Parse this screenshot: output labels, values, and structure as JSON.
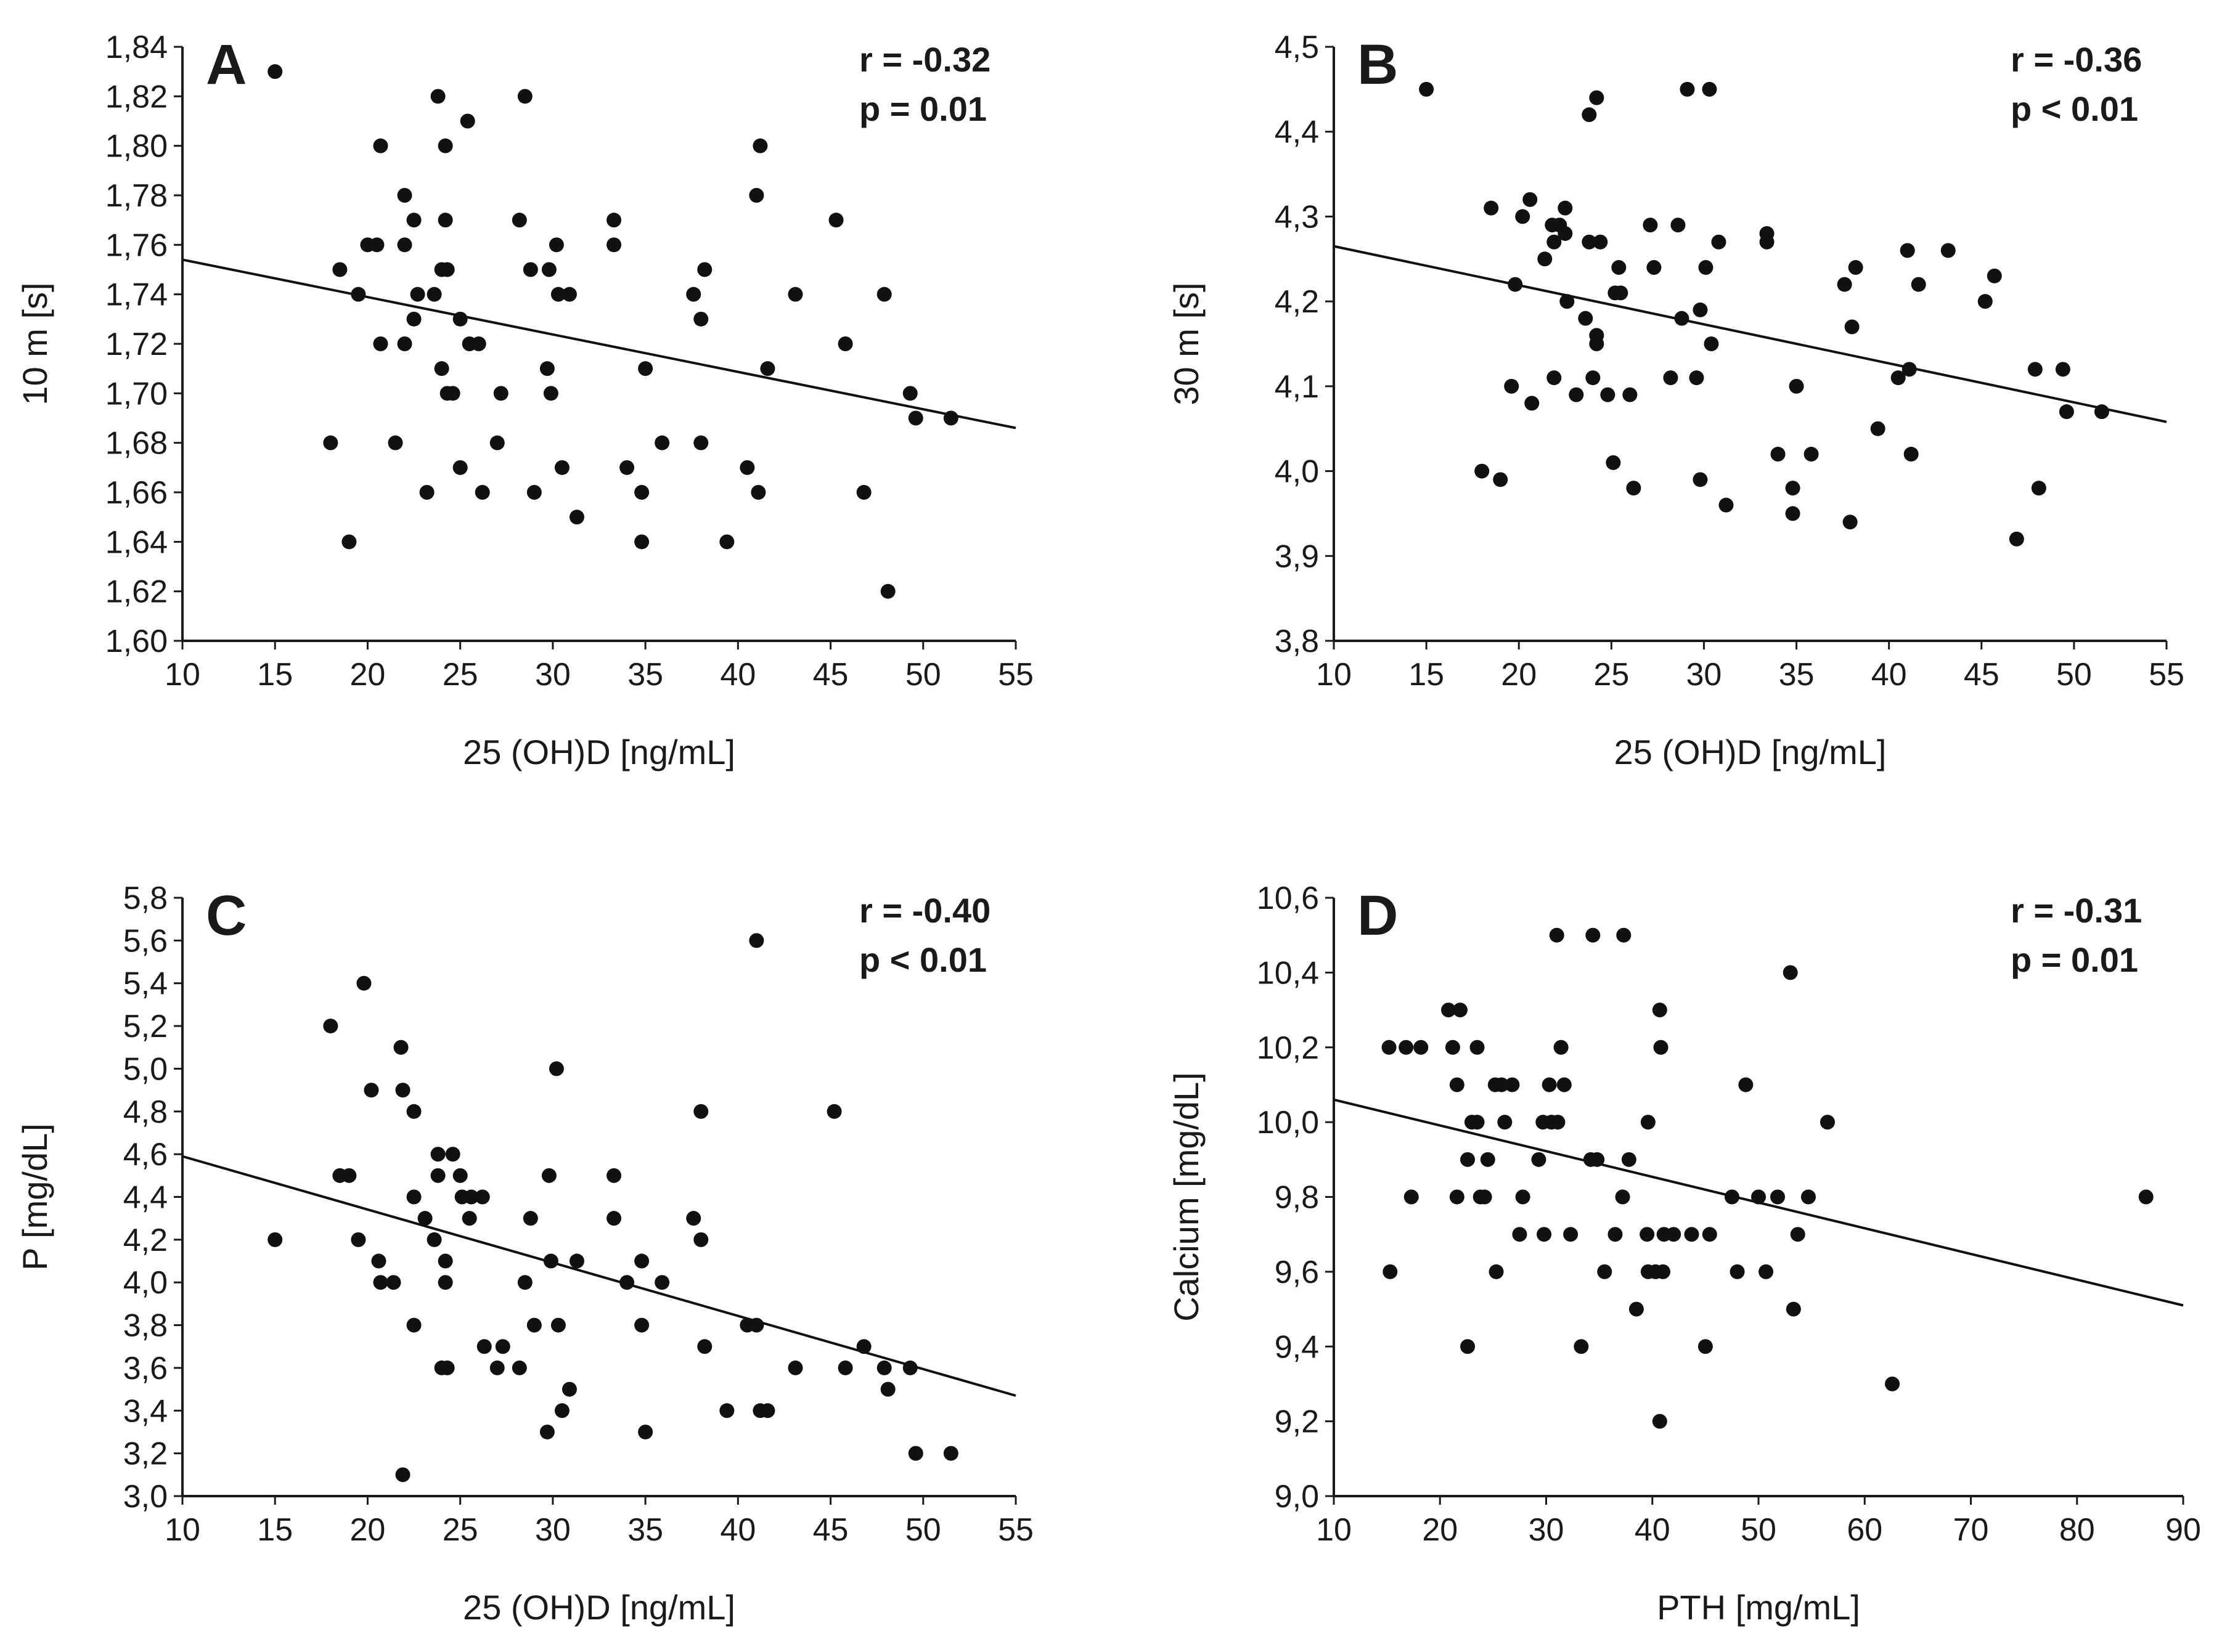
{
  "figure": {
    "colors": {
      "point": "#111111",
      "line": "#111111",
      "axis": "#1a1a1a",
      "background": "#ffffff"
    }
  },
  "chart_data": [
    {
      "type": "scatter",
      "panel": "A",
      "xlabel": "25 (OH)D [ng/mL]",
      "ylabel": "10 m [s]",
      "xlim": [
        10,
        55
      ],
      "ylim": [
        1.6,
        1.84
      ],
      "xticks": [
        10,
        15,
        20,
        25,
        30,
        35,
        40,
        45,
        50,
        55
      ],
      "xtick_labels": [
        "10",
        "15",
        "20",
        "25",
        "30",
        "35",
        "40",
        "45",
        "50",
        "55"
      ],
      "yticks": [
        1.6,
        1.62,
        1.64,
        1.66,
        1.68,
        1.7,
        1.72,
        1.74,
        1.76,
        1.78,
        1.8,
        1.82,
        1.84
      ],
      "ytick_labels": [
        "1,60",
        "1,62",
        "1,64",
        "1,66",
        "1,68",
        "1,70",
        "1,72",
        "1,74",
        "1,76",
        "1,78",
        "1,80",
        "1,82",
        "1,84"
      ],
      "stats": {
        "r": "r = -0.32",
        "p": "p = 0.01"
      },
      "trendline": {
        "x": [
          10,
          55
        ],
        "y": [
          1.754,
          1.686
        ]
      },
      "points": [
        [
          15,
          1.83
        ],
        [
          18,
          1.68
        ],
        [
          18.5,
          1.75
        ],
        [
          19,
          1.64
        ],
        [
          19.5,
          1.74
        ],
        [
          20,
          1.76
        ],
        [
          20.5,
          1.76
        ],
        [
          20.7,
          1.8
        ],
        [
          20.7,
          1.72
        ],
        [
          21.5,
          1.68
        ],
        [
          22,
          1.78
        ],
        [
          22,
          1.76
        ],
        [
          22,
          1.72
        ],
        [
          22.5,
          1.77
        ],
        [
          22.5,
          1.73
        ],
        [
          22.7,
          1.74
        ],
        [
          23.2,
          1.66
        ],
        [
          23.6,
          1.74
        ],
        [
          23.8,
          1.82
        ],
        [
          24,
          1.75
        ],
        [
          24,
          1.71
        ],
        [
          24.2,
          1.8
        ],
        [
          24.2,
          1.77
        ],
        [
          24.3,
          1.75
        ],
        [
          24.3,
          1.7
        ],
        [
          24.6,
          1.7
        ],
        [
          25,
          1.73
        ],
        [
          25,
          1.67
        ],
        [
          25.4,
          1.81
        ],
        [
          25.5,
          1.72
        ],
        [
          26,
          1.72
        ],
        [
          26.2,
          1.66
        ],
        [
          27,
          1.68
        ],
        [
          27.2,
          1.7
        ],
        [
          28.2,
          1.77
        ],
        [
          28.5,
          1.82
        ],
        [
          28.8,
          1.75
        ],
        [
          29,
          1.66
        ],
        [
          29.7,
          1.71
        ],
        [
          29.8,
          1.75
        ],
        [
          29.9,
          1.7
        ],
        [
          30.2,
          1.76
        ],
        [
          30.3,
          1.74
        ],
        [
          30.5,
          1.67
        ],
        [
          30.9,
          1.74
        ],
        [
          31.3,
          1.65
        ],
        [
          33.3,
          1.77
        ],
        [
          33.3,
          1.76
        ],
        [
          34,
          1.67
        ],
        [
          34.8,
          1.66
        ],
        [
          34.8,
          1.64
        ],
        [
          35,
          1.71
        ],
        [
          35.9,
          1.68
        ],
        [
          37.6,
          1.74
        ],
        [
          38,
          1.73
        ],
        [
          38,
          1.68
        ],
        [
          38.2,
          1.75
        ],
        [
          39.4,
          1.64
        ],
        [
          40.5,
          1.67
        ],
        [
          41,
          1.78
        ],
        [
          41.1,
          1.66
        ],
        [
          41.2,
          1.8
        ],
        [
          41.6,
          1.71
        ],
        [
          43.1,
          1.74
        ],
        [
          45.3,
          1.77
        ],
        [
          45.8,
          1.72
        ],
        [
          46.8,
          1.66
        ],
        [
          47.9,
          1.74
        ],
        [
          48.1,
          1.62
        ],
        [
          49.3,
          1.7
        ],
        [
          49.6,
          1.69
        ],
        [
          51.5,
          1.69
        ]
      ]
    },
    {
      "type": "scatter",
      "panel": "B",
      "xlabel": "25 (OH)D [ng/mL]",
      "ylabel": "30 m [s]",
      "xlim": [
        10,
        55
      ],
      "ylim": [
        3.8,
        4.5
      ],
      "xticks": [
        10,
        15,
        20,
        25,
        30,
        35,
        40,
        45,
        50,
        55
      ],
      "xtick_labels": [
        "10",
        "15",
        "20",
        "25",
        "30",
        "35",
        "40",
        "45",
        "50",
        "55"
      ],
      "yticks": [
        3.8,
        3.9,
        4.0,
        4.1,
        4.2,
        4.3,
        4.4,
        4.5
      ],
      "ytick_labels": [
        "3,8",
        "3,9",
        "4,0",
        "4,1",
        "4,2",
        "4,3",
        "4,4",
        "4,5"
      ],
      "stats": {
        "r": "r = -0.36",
        "p": "p < 0.01"
      },
      "trendline": {
        "x": [
          10,
          55
        ],
        "y": [
          4.265,
          4.058
        ]
      },
      "points": [
        [
          15,
          4.45
        ],
        [
          18,
          4.0
        ],
        [
          18.5,
          4.31
        ],
        [
          19,
          3.99
        ],
        [
          19.6,
          4.1
        ],
        [
          19.8,
          4.22
        ],
        [
          20.2,
          4.3
        ],
        [
          20.6,
          4.32
        ],
        [
          20.7,
          4.08
        ],
        [
          21.4,
          4.25
        ],
        [
          21.8,
          4.29
        ],
        [
          21.9,
          4.27
        ],
        [
          21.9,
          4.11
        ],
        [
          22.2,
          4.29
        ],
        [
          22.5,
          4.31
        ],
        [
          22.5,
          4.28
        ],
        [
          22.6,
          4.2
        ],
        [
          23.1,
          4.09
        ],
        [
          23.6,
          4.18
        ],
        [
          23.8,
          4.42
        ],
        [
          23.8,
          4.27
        ],
        [
          24,
          4.11
        ],
        [
          24.2,
          4.44
        ],
        [
          24.2,
          4.16
        ],
        [
          24.2,
          4.15
        ],
        [
          24.4,
          4.27
        ],
        [
          24.8,
          4.09
        ],
        [
          25.1,
          4.01
        ],
        [
          25.2,
          4.21
        ],
        [
          25.4,
          4.24
        ],
        [
          25.5,
          4.21
        ],
        [
          26,
          4.09
        ],
        [
          26.2,
          3.98
        ],
        [
          27.1,
          4.29
        ],
        [
          27.3,
          4.24
        ],
        [
          28.2,
          4.11
        ],
        [
          28.6,
          4.29
        ],
        [
          28.8,
          4.18
        ],
        [
          29.1,
          4.45
        ],
        [
          29.6,
          4.11
        ],
        [
          29.8,
          3.99
        ],
        [
          29.8,
          4.19
        ],
        [
          30.1,
          4.24
        ],
        [
          30.3,
          4.45
        ],
        [
          30.4,
          4.15
        ],
        [
          30.8,
          4.27
        ],
        [
          31.2,
          3.96
        ],
        [
          33.4,
          4.28
        ],
        [
          33.4,
          4.27
        ],
        [
          34.0,
          4.02
        ],
        [
          34.8,
          3.98
        ],
        [
          34.8,
          3.95
        ],
        [
          35.0,
          4.1
        ],
        [
          35.8,
          4.02
        ],
        [
          37.6,
          4.22
        ],
        [
          37.9,
          3.94
        ],
        [
          38.0,
          4.17
        ],
        [
          38.2,
          4.24
        ],
        [
          39.4,
          4.05
        ],
        [
          40.5,
          4.11
        ],
        [
          41.0,
          4.26
        ],
        [
          41.1,
          4.12
        ],
        [
          41.2,
          4.02
        ],
        [
          41.6,
          4.22
        ],
        [
          43.2,
          4.26
        ],
        [
          45.2,
          4.2
        ],
        [
          45.7,
          4.23
        ],
        [
          46.9,
          3.92
        ],
        [
          47.9,
          4.12
        ],
        [
          48.1,
          3.98
        ],
        [
          49.4,
          4.12
        ],
        [
          49.6,
          4.07
        ],
        [
          51.5,
          4.07
        ]
      ]
    },
    {
      "type": "scatter",
      "panel": "C",
      "xlabel": "25 (OH)D [ng/mL]",
      "ylabel": "P [mg/dL]",
      "xlim": [
        10,
        55
      ],
      "ylim": [
        3.0,
        5.8
      ],
      "xticks": [
        10,
        15,
        20,
        25,
        30,
        35,
        40,
        45,
        50,
        55
      ],
      "xtick_labels": [
        "10",
        "15",
        "20",
        "25",
        "30",
        "35",
        "40",
        "45",
        "50",
        "55"
      ],
      "yticks": [
        3.0,
        3.2,
        3.4,
        3.6,
        3.8,
        4.0,
        4.2,
        4.4,
        4.6,
        4.8,
        5.0,
        5.2,
        5.4,
        5.6,
        5.8
      ],
      "ytick_labels": [
        "3,0",
        "3,2",
        "3,4",
        "3,6",
        "3,8",
        "4,0",
        "4,2",
        "4,4",
        "4,6",
        "4,8",
        "5,0",
        "5,2",
        "5,4",
        "5,6",
        "5,8"
      ],
      "stats": {
        "r": "r = -0.40",
        "p": "p < 0.01"
      },
      "trendline": {
        "x": [
          10,
          55
        ],
        "y": [
          4.59,
          3.47
        ]
      },
      "points": [
        [
          15,
          4.2
        ],
        [
          18,
          5.2
        ],
        [
          18.5,
          4.5
        ],
        [
          19,
          4.5
        ],
        [
          19.5,
          4.2
        ],
        [
          19.8,
          5.4
        ],
        [
          20.2,
          4.9
        ],
        [
          20.6,
          4.1
        ],
        [
          20.7,
          4.0
        ],
        [
          21.4,
          4.0
        ],
        [
          21.8,
          5.1
        ],
        [
          21.9,
          4.9
        ],
        [
          21.9,
          3.1
        ],
        [
          22.5,
          4.8
        ],
        [
          22.5,
          4.4
        ],
        [
          22.5,
          3.8
        ],
        [
          23.1,
          4.3
        ],
        [
          23.6,
          4.2
        ],
        [
          23.8,
          4.6
        ],
        [
          23.8,
          4.5
        ],
        [
          24.0,
          3.6
        ],
        [
          24.2,
          4.1
        ],
        [
          24.2,
          4.0
        ],
        [
          24.3,
          3.6
        ],
        [
          24.6,
          4.6
        ],
        [
          25.0,
          4.5
        ],
        [
          25.1,
          4.4
        ],
        [
          25.5,
          4.3
        ],
        [
          25.6,
          4.4
        ],
        [
          26.2,
          4.4
        ],
        [
          26.3,
          3.7
        ],
        [
          27.0,
          3.6
        ],
        [
          27.3,
          3.7
        ],
        [
          28.2,
          3.6
        ],
        [
          28.5,
          4.0
        ],
        [
          28.8,
          4.3
        ],
        [
          29.0,
          3.8
        ],
        [
          29.7,
          3.3
        ],
        [
          29.8,
          4.5
        ],
        [
          29.9,
          4.1
        ],
        [
          30.2,
          5.0
        ],
        [
          30.3,
          3.8
        ],
        [
          30.5,
          3.4
        ],
        [
          30.9,
          3.5
        ],
        [
          31.3,
          4.1
        ],
        [
          33.3,
          4.5
        ],
        [
          33.3,
          4.3
        ],
        [
          34.0,
          4.0
        ],
        [
          34.8,
          3.8
        ],
        [
          34.8,
          4.1
        ],
        [
          35.0,
          3.3
        ],
        [
          35.9,
          4.0
        ],
        [
          37.6,
          4.3
        ],
        [
          38.0,
          4.8
        ],
        [
          38.0,
          4.2
        ],
        [
          38.2,
          3.7
        ],
        [
          39.4,
          3.4
        ],
        [
          40.5,
          3.8
        ],
        [
          41.0,
          5.6
        ],
        [
          41.0,
          3.8
        ],
        [
          41.2,
          3.4
        ],
        [
          41.6,
          3.4
        ],
        [
          43.1,
          3.6
        ],
        [
          45.2,
          4.8
        ],
        [
          45.8,
          3.6
        ],
        [
          46.8,
          3.7
        ],
        [
          47.9,
          3.6
        ],
        [
          48.1,
          3.5
        ],
        [
          49.3,
          3.6
        ],
        [
          49.6,
          3.2
        ],
        [
          51.5,
          3.2
        ]
      ]
    },
    {
      "type": "scatter",
      "panel": "D",
      "xlabel": "PTH [mg/mL]",
      "ylabel": "Calcium [mg/dL]",
      "xlim": [
        10,
        90
      ],
      "ylim": [
        9.0,
        10.6
      ],
      "xticks": [
        10,
        20,
        30,
        40,
        50,
        60,
        70,
        80,
        90
      ],
      "xtick_labels": [
        "10",
        "20",
        "30",
        "40",
        "50",
        "60",
        "70",
        "80",
        "90"
      ],
      "yticks": [
        9.0,
        9.2,
        9.4,
        9.6,
        9.8,
        10.0,
        10.2,
        10.4,
        10.6
      ],
      "ytick_labels": [
        "9,0",
        "9,2",
        "9,4",
        "9,6",
        "9,8",
        "10,0",
        "10,2",
        "10,4",
        "10,6"
      ],
      "stats": {
        "r": "r = -0.31",
        "p": "p = 0.01"
      },
      "trendline": {
        "x": [
          10,
          90
        ],
        "y": [
          10.06,
          9.51
        ]
      },
      "points": [
        [
          15.2,
          10.2
        ],
        [
          15.3,
          9.6
        ],
        [
          16.8,
          10.2
        ],
        [
          17.3,
          9.8
        ],
        [
          18.2,
          10.2
        ],
        [
          20.8,
          10.3
        ],
        [
          21.2,
          10.2
        ],
        [
          21.6,
          9.8
        ],
        [
          21.6,
          10.1
        ],
        [
          21.9,
          10.3
        ],
        [
          22.6,
          9.9
        ],
        [
          22.6,
          9.4
        ],
        [
          23.0,
          10.0
        ],
        [
          23.5,
          10.2
        ],
        [
          23.5,
          10.0
        ],
        [
          23.8,
          9.8
        ],
        [
          24.2,
          9.8
        ],
        [
          24.5,
          9.9
        ],
        [
          25.2,
          10.1
        ],
        [
          25.3,
          9.6
        ],
        [
          25.8,
          10.1
        ],
        [
          26.1,
          10.0
        ],
        [
          26.8,
          10.1
        ],
        [
          27.5,
          9.7
        ],
        [
          27.8,
          9.8
        ],
        [
          29.3,
          9.9
        ],
        [
          29.7,
          10.0
        ],
        [
          29.8,
          9.7
        ],
        [
          30.3,
          10.1
        ],
        [
          30.5,
          10.0
        ],
        [
          31.0,
          10.5
        ],
        [
          31.1,
          10.0
        ],
        [
          31.4,
          10.2
        ],
        [
          31.7,
          10.1
        ],
        [
          32.3,
          9.7
        ],
        [
          33.3,
          9.4
        ],
        [
          34.2,
          9.9
        ],
        [
          34.4,
          10.5
        ],
        [
          34.8,
          9.9
        ],
        [
          35.5,
          9.6
        ],
        [
          36.5,
          9.7
        ],
        [
          37.2,
          9.8
        ],
        [
          37.3,
          10.5
        ],
        [
          37.8,
          9.9
        ],
        [
          38.5,
          9.5
        ],
        [
          39.5,
          9.7
        ],
        [
          39.6,
          10.0
        ],
        [
          39.6,
          9.6
        ],
        [
          40.3,
          9.6
        ],
        [
          40.7,
          9.2
        ],
        [
          40.7,
          10.3
        ],
        [
          40.8,
          10.2
        ],
        [
          41.0,
          9.6
        ],
        [
          41.1,
          9.7
        ],
        [
          42.0,
          9.7
        ],
        [
          43.7,
          9.7
        ],
        [
          45.0,
          9.4
        ],
        [
          45.4,
          9.7
        ],
        [
          47.5,
          9.8
        ],
        [
          48.0,
          9.6
        ],
        [
          48.8,
          10.1
        ],
        [
          50.0,
          9.8
        ],
        [
          50.7,
          9.6
        ],
        [
          51.8,
          9.8
        ],
        [
          53.0,
          10.4
        ],
        [
          53.3,
          9.5
        ],
        [
          53.7,
          9.7
        ],
        [
          54.7,
          9.8
        ],
        [
          56.5,
          10.0
        ],
        [
          62.6,
          9.3
        ],
        [
          86.5,
          9.8
        ]
      ]
    }
  ]
}
